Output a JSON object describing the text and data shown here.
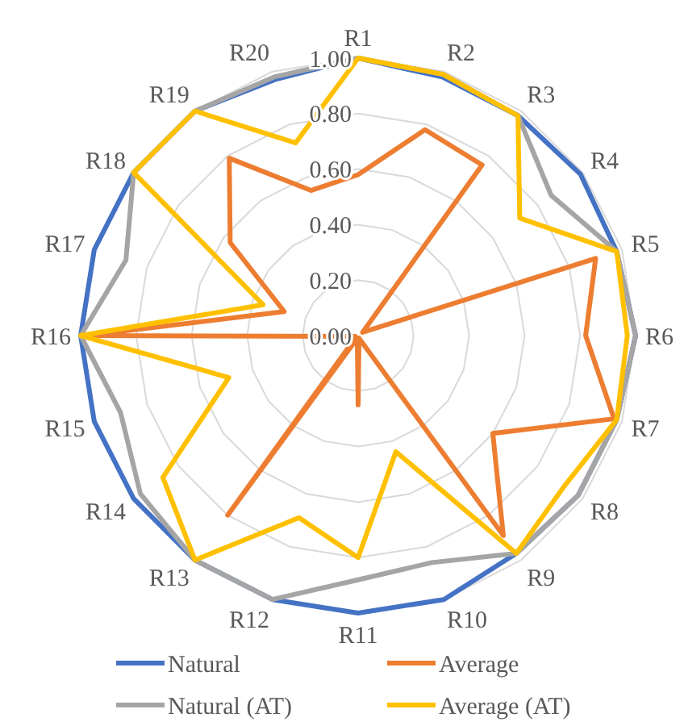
{
  "chart_data": {
    "type": "radar",
    "categories": [
      "R1",
      "R2",
      "R3",
      "R4",
      "R5",
      "R6",
      "R7",
      "R8",
      "R9",
      "R10",
      "R11",
      "R12",
      "R13",
      "R14",
      "R15",
      "R16",
      "R17",
      "R18",
      "R19",
      "R20"
    ],
    "series": [
      {
        "name": "Natural",
        "color": "#4472c4",
        "values": [
          1,
          0.98,
          0.98,
          0.99,
          0.98,
          1,
          0.98,
          0.98,
          0.97,
          1,
          1,
          1,
          1,
          1,
          1,
          1,
          1,
          1,
          1,
          0.97
        ]
      },
      {
        "name": "Average",
        "color": "#ed7d31",
        "values": [
          0.58,
          0.78,
          0.76,
          0.02,
          0.9,
          0.82,
          0.97,
          0.6,
          0.89,
          0.01,
          0.25,
          0.01,
          0.8,
          0.01,
          0.01,
          0.98,
          0.28,
          0.57,
          0.79,
          0.55
        ]
      },
      {
        "name": "Natural (AT)",
        "color": "#a5a5a5",
        "values": [
          1,
          0.99,
          0.98,
          0.86,
          0.98,
          1,
          0.98,
          0.98,
          0.97,
          0.86,
          0.88,
          1,
          1,
          0.97,
          0.9,
          1,
          0.88,
          1,
          1,
          0.98
        ]
      },
      {
        "name": "Average (AT)",
        "color": "#ffc000",
        "values": [
          1,
          0.99,
          0.98,
          0.72,
          0.98,
          0.97,
          0.98,
          0.92,
          0.97,
          0.44,
          0.8,
          0.69,
          1,
          0.87,
          0.49,
          1,
          0.36,
          1,
          1,
          0.73
        ]
      }
    ],
    "ylim": [
      0,
      1
    ],
    "yticks": [
      {
        "value": 0,
        "label": "0.00"
      },
      {
        "value": 0.2,
        "label": "0.20"
      },
      {
        "value": 0.4,
        "label": "0.40"
      },
      {
        "value": 0.6,
        "label": "0.60"
      },
      {
        "value": 0.8,
        "label": "0.80"
      },
      {
        "value": 1,
        "label": "1.00"
      }
    ],
    "grid": true,
    "legend": "bottom",
    "marker": "none",
    "line_style": "solid"
  }
}
